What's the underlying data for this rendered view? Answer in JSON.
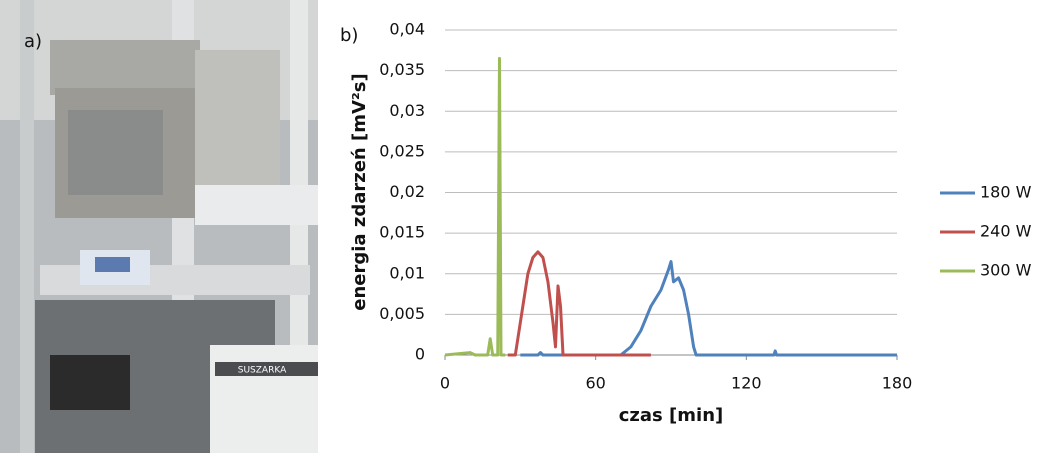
{
  "panel_a": {
    "label": "a)",
    "device_label": "SUSZARKA"
  },
  "chart_data": {
    "type": "line",
    "panel_label": "b)",
    "xlabel": "czas [min]",
    "ylabel": "energia zdarzeń [mV²s]",
    "xlim": [
      0,
      180
    ],
    "xticks": [
      0,
      60,
      120,
      180
    ],
    "ylim": [
      0,
      0.04
    ],
    "yticks": [
      0,
      {
        "value": 0.005,
        "label": "0,005"
      },
      {
        "value": 0.01,
        "label": "0,01"
      },
      {
        "value": 0.015,
        "label": "0,015"
      },
      {
        "value": 0.02,
        "label": "0,02"
      },
      {
        "value": 0.025,
        "label": "0,025"
      },
      {
        "value": 0.03,
        "label": "0,03"
      },
      {
        "value": 0.035,
        "label": "0,035"
      },
      {
        "value": 0.04,
        "label": "0,04"
      }
    ],
    "grid": true,
    "legend": "right",
    "series": [
      {
        "name": "180 W",
        "color": "#4f81bd",
        "x": [
          30,
          37,
          38,
          39,
          70,
          74,
          78,
          82,
          86,
          89,
          90,
          91,
          93,
          95,
          97,
          99,
          100,
          131,
          131.5,
          132,
          150,
          180
        ],
        "values": [
          0,
          0,
          0.0003,
          0,
          0,
          0.001,
          0.003,
          0.006,
          0.008,
          0.0105,
          0.0115,
          0.009,
          0.0095,
          0.008,
          0.005,
          0.001,
          0,
          0,
          0.0005,
          0,
          0,
          0
        ]
      },
      {
        "name": "240 W",
        "color": "#c0504d",
        "x": [
          25,
          28,
          29,
          31,
          33,
          35,
          37,
          39,
          41,
          43,
          44,
          45,
          46,
          47,
          60,
          82
        ],
        "values": [
          0,
          0,
          0.002,
          0.006,
          0.01,
          0.012,
          0.0127,
          0.012,
          0.009,
          0.004,
          0.001,
          0.0085,
          0.006,
          0,
          0,
          0
        ]
      },
      {
        "name": "300 W",
        "color": "#9bbb59",
        "x": [
          0,
          10,
          12,
          17,
          18,
          19,
          21,
          21.7,
          22.3,
          24
        ],
        "values": [
          0,
          0.0003,
          0,
          0,
          0.002,
          0,
          0,
          0.0365,
          0,
          0
        ]
      }
    ]
  }
}
